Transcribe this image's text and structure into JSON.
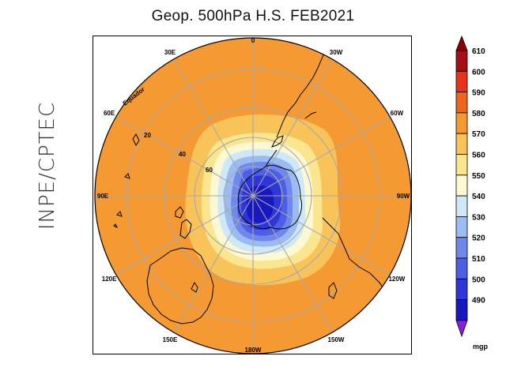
{
  "title": "Geop. 500hPa H.S. FEB2021",
  "side_label": "INPE/CPTEC",
  "map": {
    "type": "polar-stereographic",
    "hemisphere": "south",
    "variable": "500hPa geopotential height",
    "longitude_labels": [
      {
        "lon": 90,
        "text": "90W"
      },
      {
        "lon": 60,
        "text": "60W"
      },
      {
        "lon": 30,
        "text": "30W"
      },
      {
        "lon": 0,
        "text": "0"
      },
      {
        "lon": -30,
        "text": "30E"
      },
      {
        "lon": -60,
        "text": "60E"
      },
      {
        "lon": -90,
        "text": "90E"
      },
      {
        "lon": -120,
        "text": "120E"
      },
      {
        "lon": -150,
        "text": "150E"
      },
      {
        "lon": 180,
        "text": "180W"
      },
      {
        "lon": 150,
        "text": "150W"
      },
      {
        "lon": 120,
        "text": "120W"
      }
    ],
    "latitude_labels": [
      "Equador",
      "20",
      "40",
      "60"
    ]
  },
  "colorbar": {
    "unit": "mgp",
    "levels": [
      "610",
      "600",
      "590",
      "580",
      "570",
      "560",
      "550",
      "540",
      "530",
      "520",
      "510",
      "500",
      "490"
    ],
    "colors": [
      "#a50f15",
      "#e8321b",
      "#f0641e",
      "#f59a32",
      "#f8c45a",
      "#fbe58e",
      "#fdf8d4",
      "#cfe8f8",
      "#9bbcf3",
      "#7088ec",
      "#4d5fe3",
      "#2f36d6",
      "#1818c0",
      "#8a1fd6"
    ]
  }
}
